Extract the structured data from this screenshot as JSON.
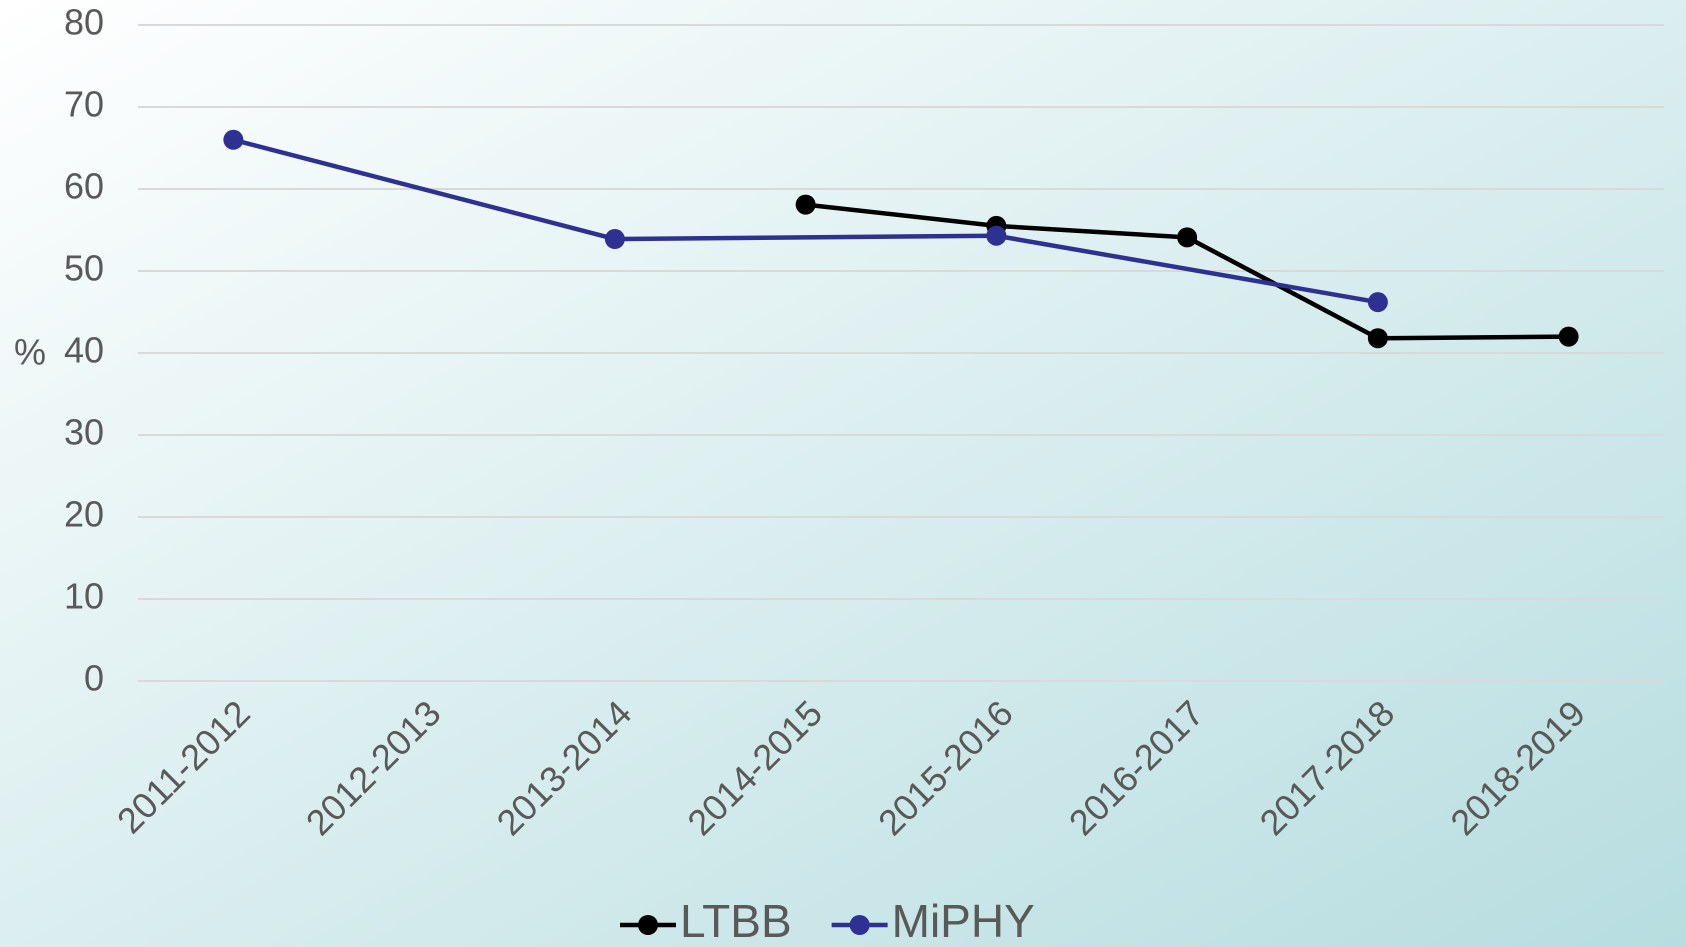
{
  "chart_data": {
    "type": "line",
    "y_label": "%",
    "categories": [
      "2011-2012",
      "2012-2013",
      "2013-2014",
      "2014-2015",
      "2015-2016",
      "2016-2017",
      "2017-2018",
      "2018-2019"
    ],
    "series": [
      {
        "name": "LTBB",
        "color": "#000000",
        "values": [
          null,
          null,
          null,
          58.1,
          55.5,
          54.1,
          41.8,
          42.0
        ]
      },
      {
        "name": "MiPHY",
        "color": "#2e3192",
        "values": [
          66.0,
          null,
          53.9,
          null,
          54.3,
          null,
          46.2,
          null
        ]
      }
    ],
    "ylim": [
      0,
      80
    ],
    "yticks": [
      0,
      10,
      20,
      30,
      40,
      50,
      60,
      70,
      80
    ],
    "grid": true,
    "connect_gaps": true,
    "legend": "bottom"
  }
}
